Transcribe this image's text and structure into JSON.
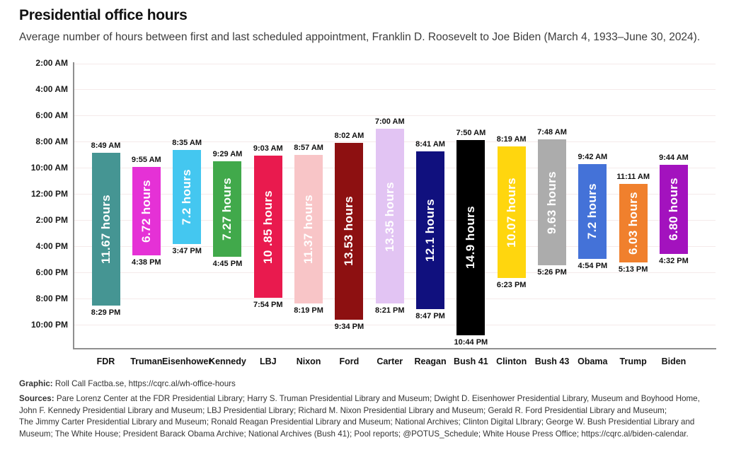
{
  "header": {
    "title": "Presidential office hours",
    "subtitle": "Average number of hours between first and last scheduled appointment, Franklin D. Roosevelt to Joe Biden (March 4, 1933–June 30, 2024)."
  },
  "chart_data": {
    "type": "bar",
    "subtype": "vertical floating range columns (time of day, earlier at top)",
    "title": "Presidential office hours",
    "grid": "horizontal gridlines every 2 hours",
    "legend": "none",
    "y_axis": {
      "tick_labels": [
        "2:00 AM",
        "4:00 AM",
        "6:00 AM",
        "8:00 AM",
        "10:00 AM",
        "12:00 PM",
        "2:00 PM",
        "4:00 PM",
        "6:00 PM",
        "8:00 PM",
        "10:00 PM"
      ],
      "inverted": true
    },
    "categories": [
      "FDR",
      "Truman",
      "Eisenhower",
      "Kennedy",
      "LBJ",
      "Nixon",
      "Ford",
      "Carter",
      "Reagan",
      "Bush 41",
      "Clinton",
      "Bush 43",
      "Obama",
      "Trump",
      "Biden"
    ],
    "bars": [
      {
        "president": "FDR",
        "start": "8:49 AM",
        "end": "8:29 PM",
        "hours": 11.67,
        "hours_label": "11.67 hours",
        "color": "#459593"
      },
      {
        "president": "Truman",
        "start": "9:55 AM",
        "end": "4:38 PM",
        "hours": 6.72,
        "hours_label": "6.72 hours",
        "color": "#e531d6"
      },
      {
        "president": "Eisenhower",
        "start": "8:35 AM",
        "end": "3:47 PM",
        "hours": 7.2,
        "hours_label": "7.2 hours",
        "color": "#44c7f0"
      },
      {
        "president": "Kennedy",
        "start": "9:29 AM",
        "end": "4:45 PM",
        "hours": 7.27,
        "hours_label": "7.27 hours",
        "color": "#41a94b"
      },
      {
        "president": "LBJ",
        "start": "9:03 AM",
        "end": "7:54 PM",
        "hours": 10.85,
        "hours_label": "10 .85 hours",
        "color": "#e91a4e"
      },
      {
        "president": "Nixon",
        "start": "8:57 AM",
        "end": "8:19 PM",
        "hours": 11.37,
        "hours_label": "11.37 hours",
        "color": "#f8c5c7"
      },
      {
        "president": "Ford",
        "start": "8:02 AM",
        "end": "9:34 PM",
        "hours": 13.53,
        "hours_label": "13.53 hours",
        "color": "#8d1011"
      },
      {
        "president": "Carter",
        "start": "7:00 AM",
        "end": "8:21 PM",
        "hours": 13.35,
        "hours_label": "13.35 hours",
        "color": "#e2c4f3"
      },
      {
        "president": "Reagan",
        "start": "8:41 AM",
        "end": "8:47 PM",
        "hours": 12.1,
        "hours_label": "12.1 hours",
        "color": "#10107e"
      },
      {
        "president": "Bush 41",
        "start": "7:50 AM",
        "end": "10:44 PM",
        "hours": 14.9,
        "hours_label": "14.9 hours",
        "color": "#000000"
      },
      {
        "president": "Clinton",
        "start": "8:19 AM",
        "end": "6:23 PM",
        "hours": 10.07,
        "hours_label": "10.07 hours",
        "color": "#ffd60e"
      },
      {
        "president": "Bush 43",
        "start": "7:48 AM",
        "end": "5:26 PM",
        "hours": 9.63,
        "hours_label": "9.63 hours",
        "color": "#acacac"
      },
      {
        "president": "Obama",
        "start": "9:42 AM",
        "end": "4:54 PM",
        "hours": 7.2,
        "hours_label": "7.2 hours",
        "color": "#4472d8"
      },
      {
        "president": "Trump",
        "start": "11:11 AM",
        "end": "5:13 PM",
        "hours": 6.03,
        "hours_label": "6.03 hours",
        "color": "#f0802d"
      },
      {
        "president": "Biden",
        "start": "9:44 AM",
        "end": "4:32 PM",
        "hours": 6.8,
        "hours_label": "6.80 hours",
        "color": "#a312be"
      }
    ]
  },
  "footer": {
    "graphic_label": "Graphic:",
    "graphic_text": " Roll Call Factba.se, https://cqrc.al/wh-office-hours",
    "sources_label": "Sources:",
    "sources_lines": [
      " Pare Lorenz Center at the FDR Presidential Library; Harry S. Truman Presidential Library and Museum; Dwight D. Eisenhower Presidential Library, Museum and Boyhood Home,",
      "John F. Kennedy Presidential Library and Museum; LBJ Presidential Library; Richard M. Nixon Presidential Library and Museum; Gerald R. Ford Presidential Library and Museum;",
      "The Jimmy Carter Presidential Library and Museum; Ronald Reagan Presidential Library and Museum; National Archives; Clinton Digital LIbrary; George W. Bush Presidential Library and",
      "Museum; The White House; President Barack Obama Archive; National Archives (Bush 41); Pool reports; @POTUS_Schedule; White House Press Office; https://cqrc.al/biden-calendar."
    ]
  }
}
